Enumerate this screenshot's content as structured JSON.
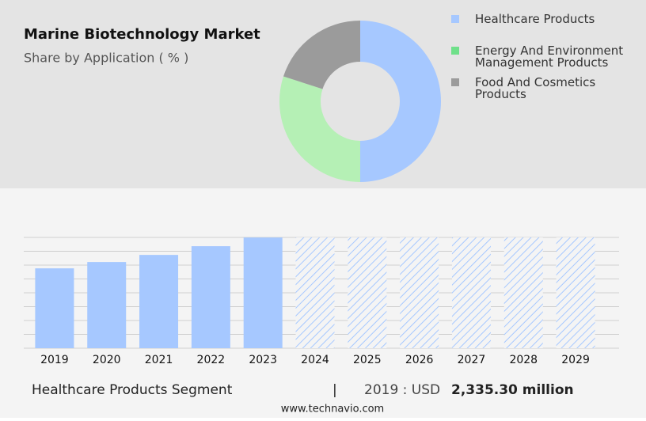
{
  "chart_data": [
    {
      "type": "pie",
      "title": "Marine Biotechnology Market",
      "subtitle": "Share by Application ( % )",
      "categories": [
        "Healthcare Products",
        "Energy And Environment Management Products",
        "Food And Cosmetics Products"
      ],
      "values": [
        50,
        30,
        20
      ],
      "colors": [
        "#a6c8ff",
        "#b5f0b5",
        "#9b9b9b"
      ],
      "legend_colors": [
        "#a6c8ff",
        "#6fe08a",
        "#9b9b9b"
      ]
    },
    {
      "type": "bar",
      "categories": [
        "2019",
        "2020",
        "2021",
        "2022",
        "2023",
        "2024",
        "2025",
        "2026",
        "2027",
        "2028",
        "2029"
      ],
      "values": [
        2335.3,
        2520,
        2728,
        2983,
        3237,
        null,
        null,
        null,
        null,
        null,
        null
      ],
      "color": "#a6c8ff",
      "ylim": [
        0,
        3240
      ],
      "yticks": [
        0,
        405,
        810,
        1215,
        1620,
        2025,
        2430,
        2835,
        3240
      ],
      "grid": true
    }
  ],
  "footer": {
    "segment": "Healthcare Products Segment",
    "separator": "|",
    "year_label": "2019 : USD",
    "value": "2,335.30 million",
    "source": "www.technavio.com"
  }
}
